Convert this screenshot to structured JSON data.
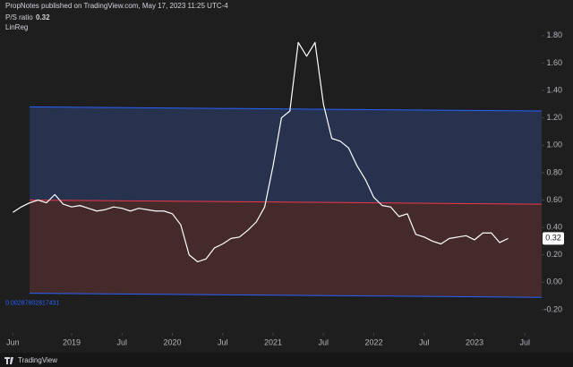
{
  "header": "PropNotes published on TradingView.com, May 17, 2023 11:25 UTC-4",
  "footer": "TradingView",
  "chart_data": {
    "type": "line",
    "series_label": "P/S ratio",
    "indicator_label": "LinReg",
    "current_value": {
      "value": 0.32,
      "label": "0.32"
    },
    "slope_label": "0.00287802817431",
    "x": [
      "2018-06",
      "2018-07",
      "2018-08",
      "2018-09",
      "2018-10",
      "2018-11",
      "2018-12",
      "2019-01",
      "2019-02",
      "2019-03",
      "2019-04",
      "2019-05",
      "2019-06",
      "2019-07",
      "2019-08",
      "2019-09",
      "2019-10",
      "2019-11",
      "2019-12",
      "2020-01",
      "2020-02",
      "2020-03",
      "2020-04",
      "2020-05",
      "2020-06",
      "2020-07",
      "2020-08",
      "2020-09",
      "2020-10",
      "2020-11",
      "2020-12",
      "2021-01",
      "2021-02",
      "2021-03",
      "2021-04",
      "2021-05",
      "2021-06",
      "2021-07",
      "2021-08",
      "2021-09",
      "2021-10",
      "2021-11",
      "2021-12",
      "2022-01",
      "2022-02",
      "2022-03",
      "2022-04",
      "2022-05",
      "2022-06",
      "2022-07",
      "2022-08",
      "2022-09",
      "2022-10",
      "2022-11",
      "2022-12",
      "2023-01",
      "2023-02",
      "2023-03",
      "2023-04",
      "2023-05"
    ],
    "series": [
      {
        "name": "P/S ratio",
        "color": "#ffffff",
        "values": [
          0.51,
          0.55,
          0.58,
          0.6,
          0.58,
          0.64,
          0.57,
          0.55,
          0.56,
          0.54,
          0.52,
          0.53,
          0.55,
          0.54,
          0.52,
          0.54,
          0.53,
          0.52,
          0.52,
          0.5,
          0.42,
          0.2,
          0.15,
          0.17,
          0.25,
          0.28,
          0.32,
          0.33,
          0.38,
          0.44,
          0.55,
          0.85,
          1.2,
          1.25,
          1.75,
          1.65,
          1.75,
          1.3,
          1.05,
          1.03,
          0.98,
          0.85,
          0.75,
          0.62,
          0.56,
          0.55,
          0.48,
          0.5,
          0.35,
          0.33,
          0.3,
          0.28,
          0.32,
          0.33,
          0.34,
          0.31,
          0.36,
          0.36,
          0.29,
          0.32
        ]
      }
    ],
    "regression": {
      "x": [
        "2018-08",
        "2023-09"
      ],
      "upper": [
        1.28,
        1.25
      ],
      "middle": [
        0.6,
        0.57
      ],
      "lower": [
        -0.08,
        -0.11
      ],
      "band_color": "#2962ff",
      "middle_color": "#f23645",
      "upper_fill": "#27324f",
      "lower_fill": "#452a2c"
    },
    "xlim": [
      "2018-05",
      "2023-09"
    ],
    "xticks": [
      {
        "value": "2018-06",
        "label": "Jun"
      },
      {
        "value": "2019-01",
        "label": "2019"
      },
      {
        "value": "2019-07",
        "label": "Jul"
      },
      {
        "value": "2020-01",
        "label": "2020"
      },
      {
        "value": "2020-07",
        "label": "Jul"
      },
      {
        "value": "2021-01",
        "label": "2021"
      },
      {
        "value": "2021-07",
        "label": "Jul"
      },
      {
        "value": "2022-01",
        "label": "2022"
      },
      {
        "value": "2022-07",
        "label": "Jul"
      },
      {
        "value": "2023-01",
        "label": "2023"
      },
      {
        "value": "2023-07",
        "label": "Jul"
      }
    ],
    "ylim": [
      -0.37,
      2.06
    ],
    "yticks": [
      {
        "value": -0.2,
        "label": "-0.20"
      },
      {
        "value": 0,
        "label": "0.00"
      },
      {
        "value": 0.2,
        "label": "0.20"
      },
      {
        "value": 0.4,
        "label": "0.40"
      },
      {
        "value": 0.6,
        "label": "0.60"
      },
      {
        "value": 0.8,
        "label": "0.80"
      },
      {
        "value": 1,
        "label": "1.00"
      },
      {
        "value": 1.2,
        "label": "1.20"
      },
      {
        "value": 1.4,
        "label": "1.40"
      },
      {
        "value": 1.6,
        "label": "1.60"
      },
      {
        "value": 1.8,
        "label": "1.80"
      }
    ]
  }
}
